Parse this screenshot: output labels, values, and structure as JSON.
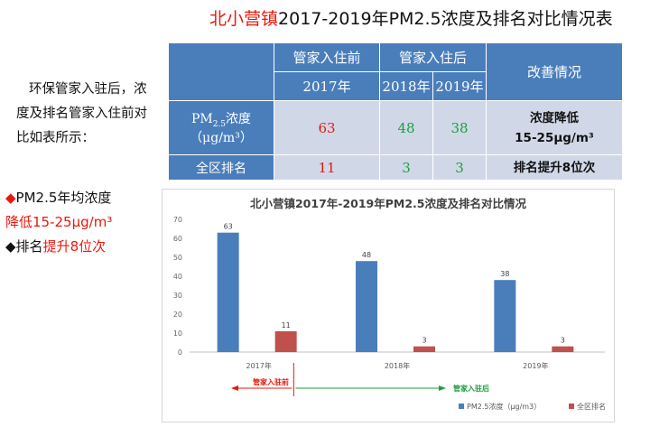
{
  "title": {
    "prefix": "北小营镇",
    "rest": "2017-2019年PM2.5浓度及排名对比情况表"
  },
  "intro": "环保管家入驻后，浓度及排名管家入住前对比如表所示：",
  "bullets": {
    "b1_line1": "PM2.5年均浓度",
    "b1_line2": "降低15-25μg/m³",
    "b2_prefix": "排名",
    "b2_red": "提升8位次"
  },
  "table": {
    "header_before": "管家入住前",
    "header_after": "管家入住后",
    "header_improve": "改善情况",
    "year_2017": "2017年",
    "year_2018": "2018年",
    "year_2019": "2019年",
    "row_pm_label_main": "PM",
    "row_pm_label_sub": "2.5",
    "row_pm_label_tail": "浓度",
    "row_pm_unit": "（μg/m³）",
    "pm_2017": "63",
    "pm_2018": "48",
    "pm_2019": "38",
    "pm_improve_1": "浓度降低",
    "pm_improve_2": "15-25μg/m³",
    "row_rank_label": "全区排名",
    "rank_2017": "11",
    "rank_2018": "3",
    "rank_2019": "3",
    "rank_improve": "排名提升8位次"
  },
  "chart_data": {
    "type": "bar",
    "title": "北小营镇2017年-2019年PM2.5浓度及排名对比情况",
    "categories": [
      "2017年",
      "2018年",
      "2019年"
    ],
    "series": [
      {
        "name": "PM2.5浓度（μg/m3）",
        "values": [
          63,
          48,
          38
        ],
        "color": "#4a7ebb"
      },
      {
        "name": "全区排名",
        "values": [
          11,
          3,
          3
        ],
        "color": "#c0504d"
      }
    ],
    "ylim": [
      0,
      70
    ],
    "yticks": [
      0,
      10,
      20,
      30,
      40,
      50,
      60,
      70
    ],
    "annotations": {
      "before": "管家入驻前",
      "after": "管家入驻后"
    },
    "annotation_colors": {
      "before": "#e8180c",
      "after": "#1e9e3e"
    },
    "legend": "bottom-right"
  }
}
